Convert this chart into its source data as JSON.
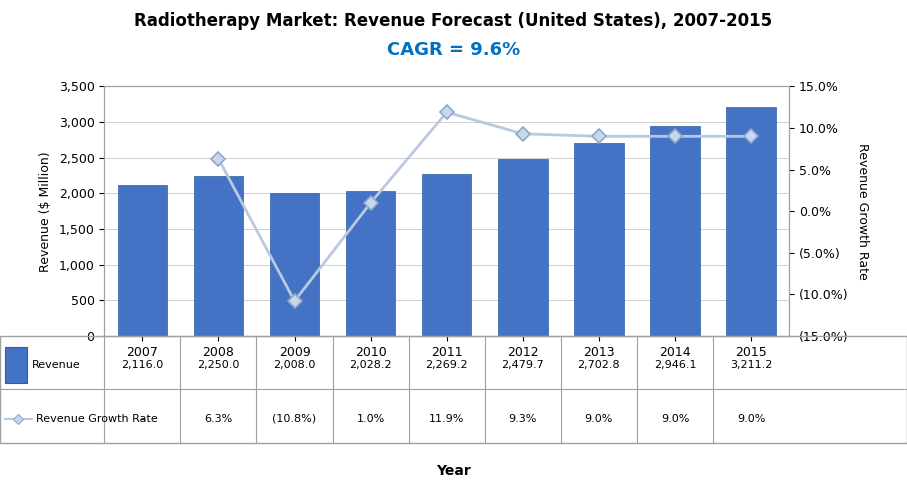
{
  "title": "Radiotherapy Market: Revenue Forecast (United States), 2007-2015",
  "cagr_text": "CAGR = 9.6%",
  "years": [
    "2007",
    "2008",
    "2009",
    "2010",
    "2011",
    "2012",
    "2013",
    "2014",
    "2015"
  ],
  "revenue": [
    2116.0,
    2250.0,
    2008.0,
    2028.2,
    2269.2,
    2479.7,
    2702.8,
    2946.1,
    3211.2
  ],
  "growth_rate": [
    null,
    6.3,
    -10.8,
    1.0,
    11.9,
    9.3,
    9.0,
    9.0,
    9.0
  ],
  "revenue_labels": [
    "2,116.0",
    "2,250.0",
    "2,008.0",
    "2,028.2",
    "2,269.2",
    "2,479.7",
    "2,702.8",
    "2,946.1",
    "3,211.2"
  ],
  "growth_labels": [
    "-",
    "6.3%",
    "(10.8%)",
    "1.0%",
    "11.9%",
    "9.3%",
    "9.0%",
    "9.0%",
    "9.0%"
  ],
  "bar_color": "#4472C4",
  "line_color": "#B8C9E1",
  "marker_color": "#C8D8EC",
  "marker_edge_color": "#8FA8C8",
  "xlabel": "Year",
  "ylabel_left": "Revenue ($ Million)",
  "ylabel_right": "Revenue Growth Rate",
  "ylim_left": [
    0,
    3500
  ],
  "ylim_right": [
    -0.15,
    0.15
  ],
  "yticks_left": [
    0,
    500,
    1000,
    1500,
    2000,
    2500,
    3000,
    3500
  ],
  "yticks_right": [
    -0.15,
    -0.1,
    -0.05,
    0.0,
    0.05,
    0.1,
    0.15
  ],
  "ytick_labels_right": [
    "(15.0%)",
    "(10.0%)",
    "(5.0%)",
    "0.0%",
    "5.0%",
    "10.0%",
    "15.0%"
  ],
  "title_fontsize": 12,
  "cagr_fontsize": 13,
  "cagr_color": "#0070C0",
  "background_color": "#FFFFFF",
  "legend_revenue_label": "Revenue",
  "legend_growth_label": "Revenue Growth Rate",
  "grid_color": "#D0D0D0",
  "spine_color": "#A0A0A0",
  "table_font_size": 8,
  "bar_edge_color": "#2E5FA0"
}
